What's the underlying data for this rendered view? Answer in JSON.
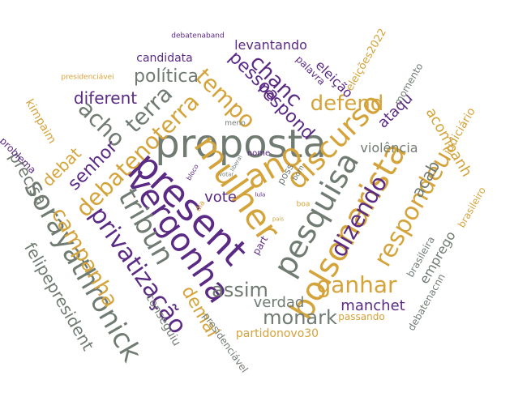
{
  "colors": {
    "purple": "#5a2a84",
    "gold": "#d4a33a",
    "gray": "#707b72"
  },
  "words": [
    {
      "text": "proposta",
      "color": "gray"
    },
    {
      "text": "mulher",
      "color": "gold"
    },
    {
      "text": "present",
      "color": "purple"
    },
    {
      "text": "vergonha",
      "color": "purple"
    },
    {
      "text": "ano",
      "color": "gold"
    },
    {
      "text": "pesquisa",
      "color": "gray"
    },
    {
      "text": "bolsonarista",
      "color": "gold"
    },
    {
      "text": "discurso",
      "color": "gold"
    },
    {
      "text": "sorayathronick",
      "color": "gray"
    },
    {
      "text": "tribun",
      "color": "gray"
    },
    {
      "text": "privatização",
      "color": "purple"
    },
    {
      "text": "campanha",
      "color": "gold"
    },
    {
      "text": "debatenoterra",
      "color": "gold"
    },
    {
      "text": "respondeu",
      "color": "gold"
    },
    {
      "text": "dizendo",
      "color": "purple"
    },
    {
      "text": "ganhar",
      "color": "gold"
    },
    {
      "text": "defend",
      "color": "gold"
    },
    {
      "text": "tempo",
      "color": "gold"
    },
    {
      "text": "terra",
      "color": "gray"
    },
    {
      "text": "acho",
      "color": "gray"
    },
    {
      "text": "chanc",
      "color": "purple"
    },
    {
      "text": "pessoa",
      "color": "purple"
    },
    {
      "text": "respond",
      "color": "purple"
    },
    {
      "text": "política",
      "color": "gray"
    },
    {
      "text": "diferent",
      "color": "purple"
    },
    {
      "text": "senhor",
      "color": "purple"
    },
    {
      "text": "debat",
      "color": "gold"
    },
    {
      "text": "precisa",
      "color": "gray"
    },
    {
      "text": "felipepresident",
      "color": "gray"
    },
    {
      "text": "assim",
      "color": "gray"
    },
    {
      "text": "monark",
      "color": "gray"
    },
    {
      "text": "demai",
      "color": "gold"
    },
    {
      "text": "verdad",
      "color": "gray"
    },
    {
      "text": "manchet",
      "color": "purple"
    },
    {
      "text": "acab",
      "color": "gray"
    },
    {
      "text": "acompanh",
      "color": "gold"
    },
    {
      "text": "violência",
      "color": "gray"
    },
    {
      "text": "ataqu",
      "color": "purple"
    },
    {
      "text": "eleição",
      "color": "purple"
    },
    {
      "text": "levantando",
      "color": "purple"
    },
    {
      "text": "candidata",
      "color": "purple"
    },
    {
      "text": "vote",
      "color": "purple"
    },
    {
      "text": "kimpaim",
      "color": "gold"
    },
    {
      "text": "problema",
      "color": "purple"
    },
    {
      "text": "judiciário",
      "color": "gold"
    },
    {
      "text": "emprego",
      "color": "gray"
    },
    {
      "text": "debatenacnn",
      "color": "gray"
    },
    {
      "text": "brasileira",
      "color": "gray"
    },
    {
      "text": "brasileiro",
      "color": "gold"
    },
    {
      "text": "conseguiu",
      "color": "gray"
    },
    {
      "text": "presidenciável",
      "color": "gray"
    },
    {
      "text": "partidonovo30",
      "color": "gold"
    },
    {
      "text": "passando",
      "color": "gold"
    },
    {
      "text": "palavra",
      "color": "purple"
    },
    {
      "text": "eleições2022",
      "color": "gold"
    },
    {
      "text": "momento",
      "color": "gray"
    },
    {
      "text": "debatenaband",
      "color": "purple"
    },
    {
      "text": "presidenciávei",
      "color": "gold"
    },
    {
      "text": "meno",
      "color": "gray"
    },
    {
      "text": "nome",
      "color": "purple"
    },
    {
      "text": "poss",
      "color": "gray"
    },
    {
      "text": "part",
      "color": "purple"
    },
    {
      "text": "boa",
      "color": "gold"
    },
    {
      "text": "bom",
      "color": "gray"
    },
    {
      "text": "dia",
      "color": "gold"
    },
    {
      "text": "bloco",
      "color": "purple"
    },
    {
      "text": "liberal",
      "color": "gray"
    },
    {
      "text": "votar",
      "color": "gray"
    },
    {
      "text": "país",
      "color": "gold"
    },
    {
      "text": "lula",
      "color": "purple"
    }
  ]
}
